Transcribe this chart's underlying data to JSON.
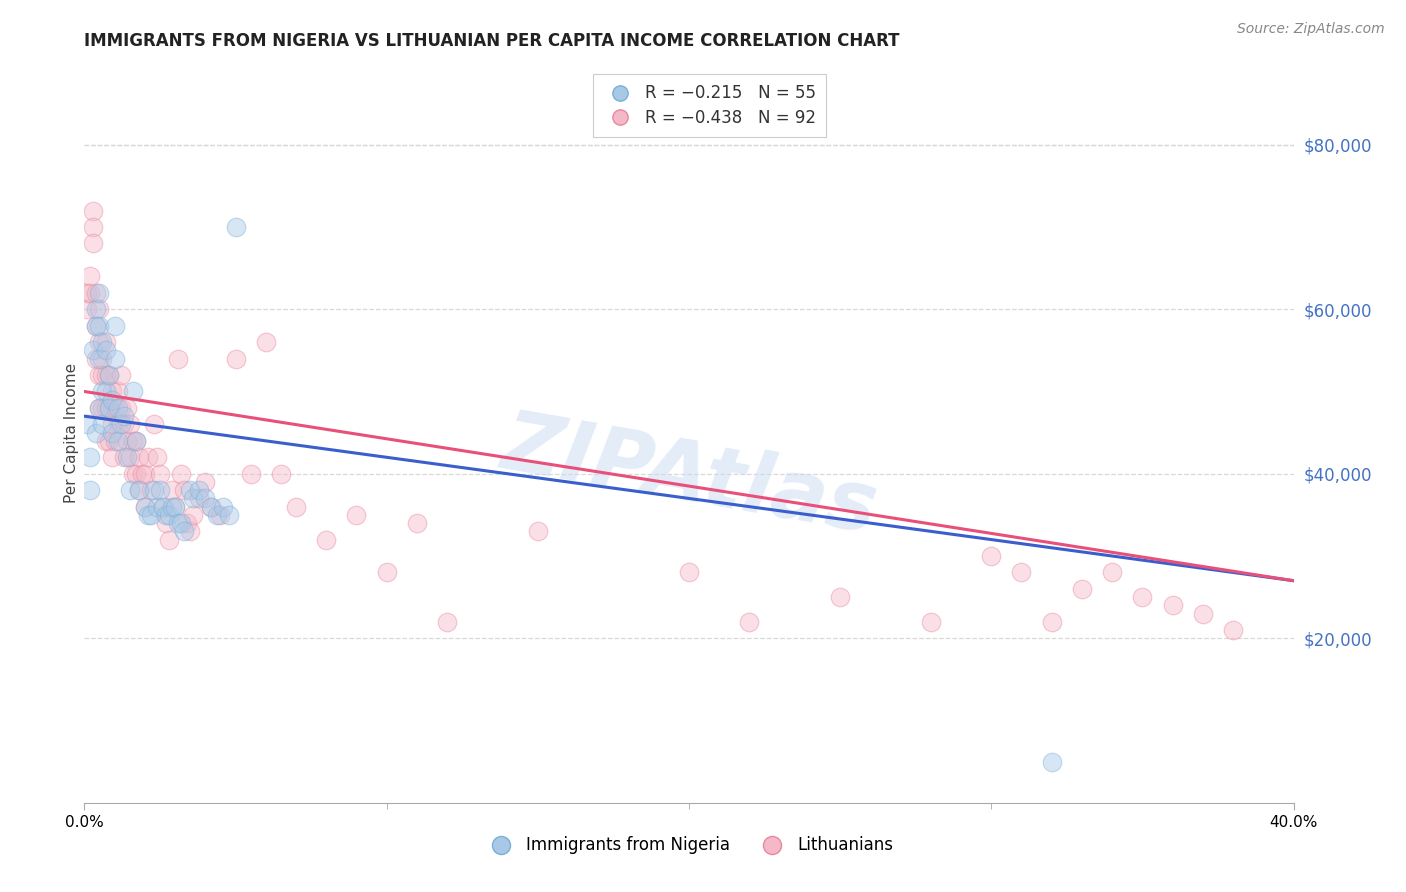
{
  "title": "IMMIGRANTS FROM NIGERIA VS LITHUANIAN PER CAPITA INCOME CORRELATION CHART",
  "source": "Source: ZipAtlas.com",
  "ylabel": "Per Capita Income",
  "right_yticks": [
    20000,
    40000,
    60000,
    80000
  ],
  "right_ytick_labels": [
    "$20,000",
    "$40,000",
    "$60,000",
    "$80,000"
  ],
  "watermark": "ZIPAtlas",
  "legend_label_blue": "R = −0.215   N = 55",
  "legend_label_pink": "R = −0.438   N = 92",
  "legend_label_bottom_blue": "Immigrants from Nigeria",
  "legend_label_bottom_pink": "Lithuanians",
  "blue_scatter": {
    "x": [
      0.001,
      0.002,
      0.002,
      0.003,
      0.004,
      0.004,
      0.004,
      0.005,
      0.005,
      0.005,
      0.005,
      0.006,
      0.006,
      0.006,
      0.007,
      0.007,
      0.008,
      0.008,
      0.009,
      0.009,
      0.01,
      0.01,
      0.011,
      0.011,
      0.012,
      0.013,
      0.014,
      0.015,
      0.016,
      0.017,
      0.018,
      0.02,
      0.021,
      0.022,
      0.023,
      0.024,
      0.025,
      0.026,
      0.027,
      0.028,
      0.029,
      0.03,
      0.031,
      0.032,
      0.033,
      0.035,
      0.036,
      0.038,
      0.04,
      0.042,
      0.044,
      0.046,
      0.048,
      0.05,
      0.32
    ],
    "y": [
      46000,
      42000,
      38000,
      55000,
      60000,
      58000,
      45000,
      62000,
      58000,
      54000,
      48000,
      56000,
      50000,
      46000,
      55000,
      50000,
      52000,
      48000,
      49000,
      45000,
      58000,
      54000,
      48000,
      44000,
      46000,
      47000,
      42000,
      38000,
      50000,
      44000,
      38000,
      36000,
      35000,
      35000,
      38000,
      36000,
      38000,
      36000,
      35000,
      35000,
      36000,
      36000,
      34000,
      34000,
      33000,
      38000,
      37000,
      38000,
      37000,
      36000,
      35000,
      36000,
      35000,
      70000,
      5000
    ]
  },
  "pink_scatter": {
    "x": [
      0.001,
      0.001,
      0.002,
      0.002,
      0.003,
      0.003,
      0.003,
      0.004,
      0.004,
      0.004,
      0.005,
      0.005,
      0.005,
      0.005,
      0.006,
      0.006,
      0.006,
      0.007,
      0.007,
      0.007,
      0.007,
      0.008,
      0.008,
      0.008,
      0.009,
      0.009,
      0.009,
      0.01,
      0.01,
      0.011,
      0.011,
      0.012,
      0.012,
      0.013,
      0.013,
      0.014,
      0.014,
      0.015,
      0.015,
      0.016,
      0.016,
      0.017,
      0.017,
      0.018,
      0.018,
      0.019,
      0.02,
      0.02,
      0.021,
      0.022,
      0.023,
      0.024,
      0.025,
      0.026,
      0.027,
      0.028,
      0.029,
      0.03,
      0.031,
      0.032,
      0.033,
      0.034,
      0.035,
      0.036,
      0.038,
      0.04,
      0.042,
      0.045,
      0.05,
      0.055,
      0.06,
      0.065,
      0.07,
      0.08,
      0.09,
      0.1,
      0.11,
      0.12,
      0.15,
      0.2,
      0.22,
      0.25,
      0.28,
      0.3,
      0.31,
      0.32,
      0.33,
      0.34,
      0.35,
      0.36,
      0.37,
      0.38
    ],
    "y": [
      62000,
      60000,
      64000,
      62000,
      72000,
      70000,
      68000,
      62000,
      58000,
      54000,
      60000,
      56000,
      52000,
      48000,
      54000,
      52000,
      48000,
      56000,
      52000,
      48000,
      44000,
      52000,
      48000,
      44000,
      50000,
      46000,
      42000,
      48000,
      44000,
      50000,
      46000,
      52000,
      48000,
      46000,
      42000,
      48000,
      44000,
      46000,
      42000,
      44000,
      40000,
      44000,
      40000,
      42000,
      38000,
      40000,
      40000,
      36000,
      42000,
      38000,
      46000,
      42000,
      40000,
      36000,
      34000,
      32000,
      38000,
      36000,
      54000,
      40000,
      38000,
      34000,
      33000,
      35000,
      37000,
      39000,
      36000,
      35000,
      54000,
      40000,
      56000,
      40000,
      36000,
      32000,
      35000,
      28000,
      34000,
      22000,
      33000,
      28000,
      22000,
      25000,
      22000,
      30000,
      28000,
      22000,
      26000,
      28000,
      25000,
      24000,
      23000,
      21000
    ]
  },
  "blue_line_x": [
    0.0,
    0.4
  ],
  "blue_line_y": [
    47000,
    27000
  ],
  "pink_line_x": [
    0.0,
    0.4
  ],
  "pink_line_y": [
    50000,
    27000
  ],
  "xlim": [
    0.0,
    0.4
  ],
  "ylim": [
    0,
    90000
  ],
  "xticks": [
    0.0,
    0.4
  ],
  "xtick_labels": [
    "0.0%",
    "40.0%"
  ],
  "scatter_size": 180,
  "scatter_alpha": 0.45,
  "marker_color_blue": "#a8c8e8",
  "marker_edge_blue": "#7bafd4",
  "marker_color_pink": "#f4b8c8",
  "marker_edge_pink": "#e888a0",
  "line_color_blue": "#3a5fcd",
  "line_color_pink": "#e8507a",
  "right_axis_color": "#4472c4",
  "title_fontsize": 12,
  "source_fontsize": 10,
  "watermark_color": "#c8daf0",
  "watermark_fontsize": 60,
  "watermark_alpha": 0.5
}
